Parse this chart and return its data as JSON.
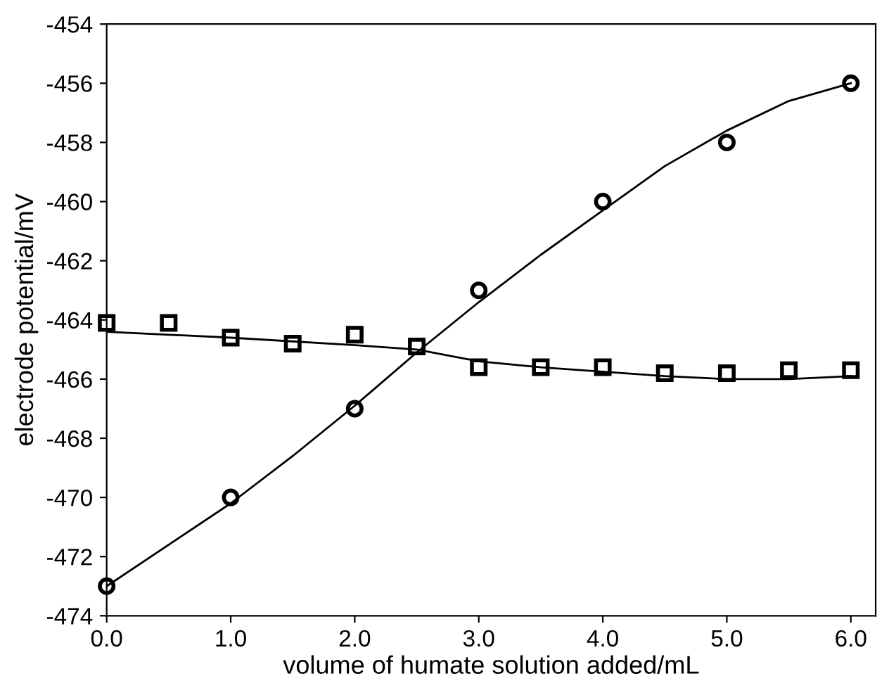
{
  "chart_data": {
    "type": "scatter",
    "xlabel": "volume of humate solution added/mL",
    "ylabel": "electrode potential/mV",
    "xlim": [
      0,
      6.2
    ],
    "ylim": [
      -474,
      -454
    ],
    "xticks": [
      {
        "value": 0,
        "label": "0.0"
      },
      {
        "value": 1,
        "label": "1.0"
      },
      {
        "value": 2,
        "label": "2.0"
      },
      {
        "value": 3,
        "label": "3.0"
      },
      {
        "value": 4,
        "label": "4.0"
      },
      {
        "value": 5,
        "label": "5.0"
      },
      {
        "value": 6,
        "label": "6.0"
      }
    ],
    "yticks": [
      -474,
      -472,
      -470,
      -468,
      -466,
      -464,
      -462,
      -460,
      -458,
      -456,
      -454
    ],
    "grid": false,
    "legend": false,
    "series": [
      {
        "marker": "circle",
        "color": "#000000",
        "x": [
          0,
          1,
          2,
          3,
          4,
          5,
          6
        ],
        "values": [
          -473,
          -470,
          -467,
          -463,
          -460,
          -458,
          -456
        ]
      },
      {
        "marker": "square",
        "color": "#000000",
        "x": [
          0,
          0.5,
          1,
          1.5,
          2,
          2.5,
          3,
          3.5,
          4,
          4.5,
          5,
          5.5,
          6
        ],
        "values": [
          -464.1,
          -464.1,
          -464.6,
          -464.8,
          -464.5,
          -464.9,
          -465.6,
          -465.6,
          -465.6,
          -465.8,
          -465.8,
          -465.7,
          -465.7
        ]
      },
      {
        "type": "line",
        "marker": "none",
        "line_style": "solid",
        "color": "#000000",
        "x": [
          0,
          0.5,
          1,
          1.5,
          2,
          2.5,
          3,
          3.5,
          4,
          4.5,
          5,
          5.5,
          6
        ],
        "values": [
          -473,
          -471.6,
          -470.2,
          -468.6,
          -466.9,
          -465.1,
          -463.4,
          -461.8,
          -460.3,
          -458.8,
          -457.6,
          -456.6,
          -456
        ]
      },
      {
        "type": "line",
        "marker": "none",
        "line_style": "solid",
        "color": "#000000",
        "x": [
          0,
          1,
          2,
          2.5,
          3,
          3.5,
          4,
          4.5,
          5,
          5.5,
          6
        ],
        "values": [
          -464.4,
          -464.6,
          -464.85,
          -465,
          -465.4,
          -465.6,
          -465.75,
          -465.9,
          -466,
          -466,
          -465.9
        ]
      }
    ]
  }
}
